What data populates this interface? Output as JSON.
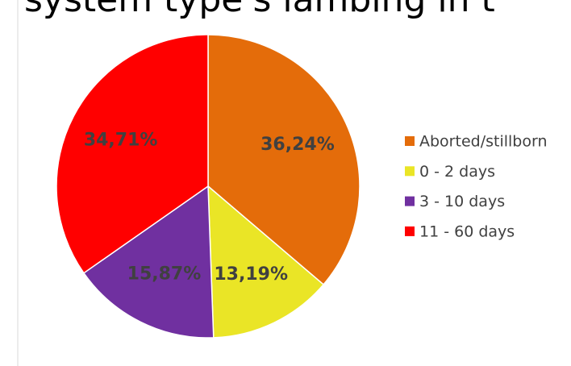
{
  "chart_data": {
    "type": "pie",
    "title": "system type's lambing in t",
    "categories": [
      "Aborted/stillborn",
      "0 - 2 days",
      "3 - 10 days",
      "11 - 60 days"
    ],
    "values": [
      36.24,
      13.19,
      15.87,
      34.71
    ],
    "value_labels": [
      "36,24%",
      "13,19%",
      "15,87%",
      "34,71%"
    ],
    "colors": [
      "#e46c0a",
      "#eae526",
      "#7030a0",
      "#ff0000"
    ],
    "legend": "right"
  }
}
